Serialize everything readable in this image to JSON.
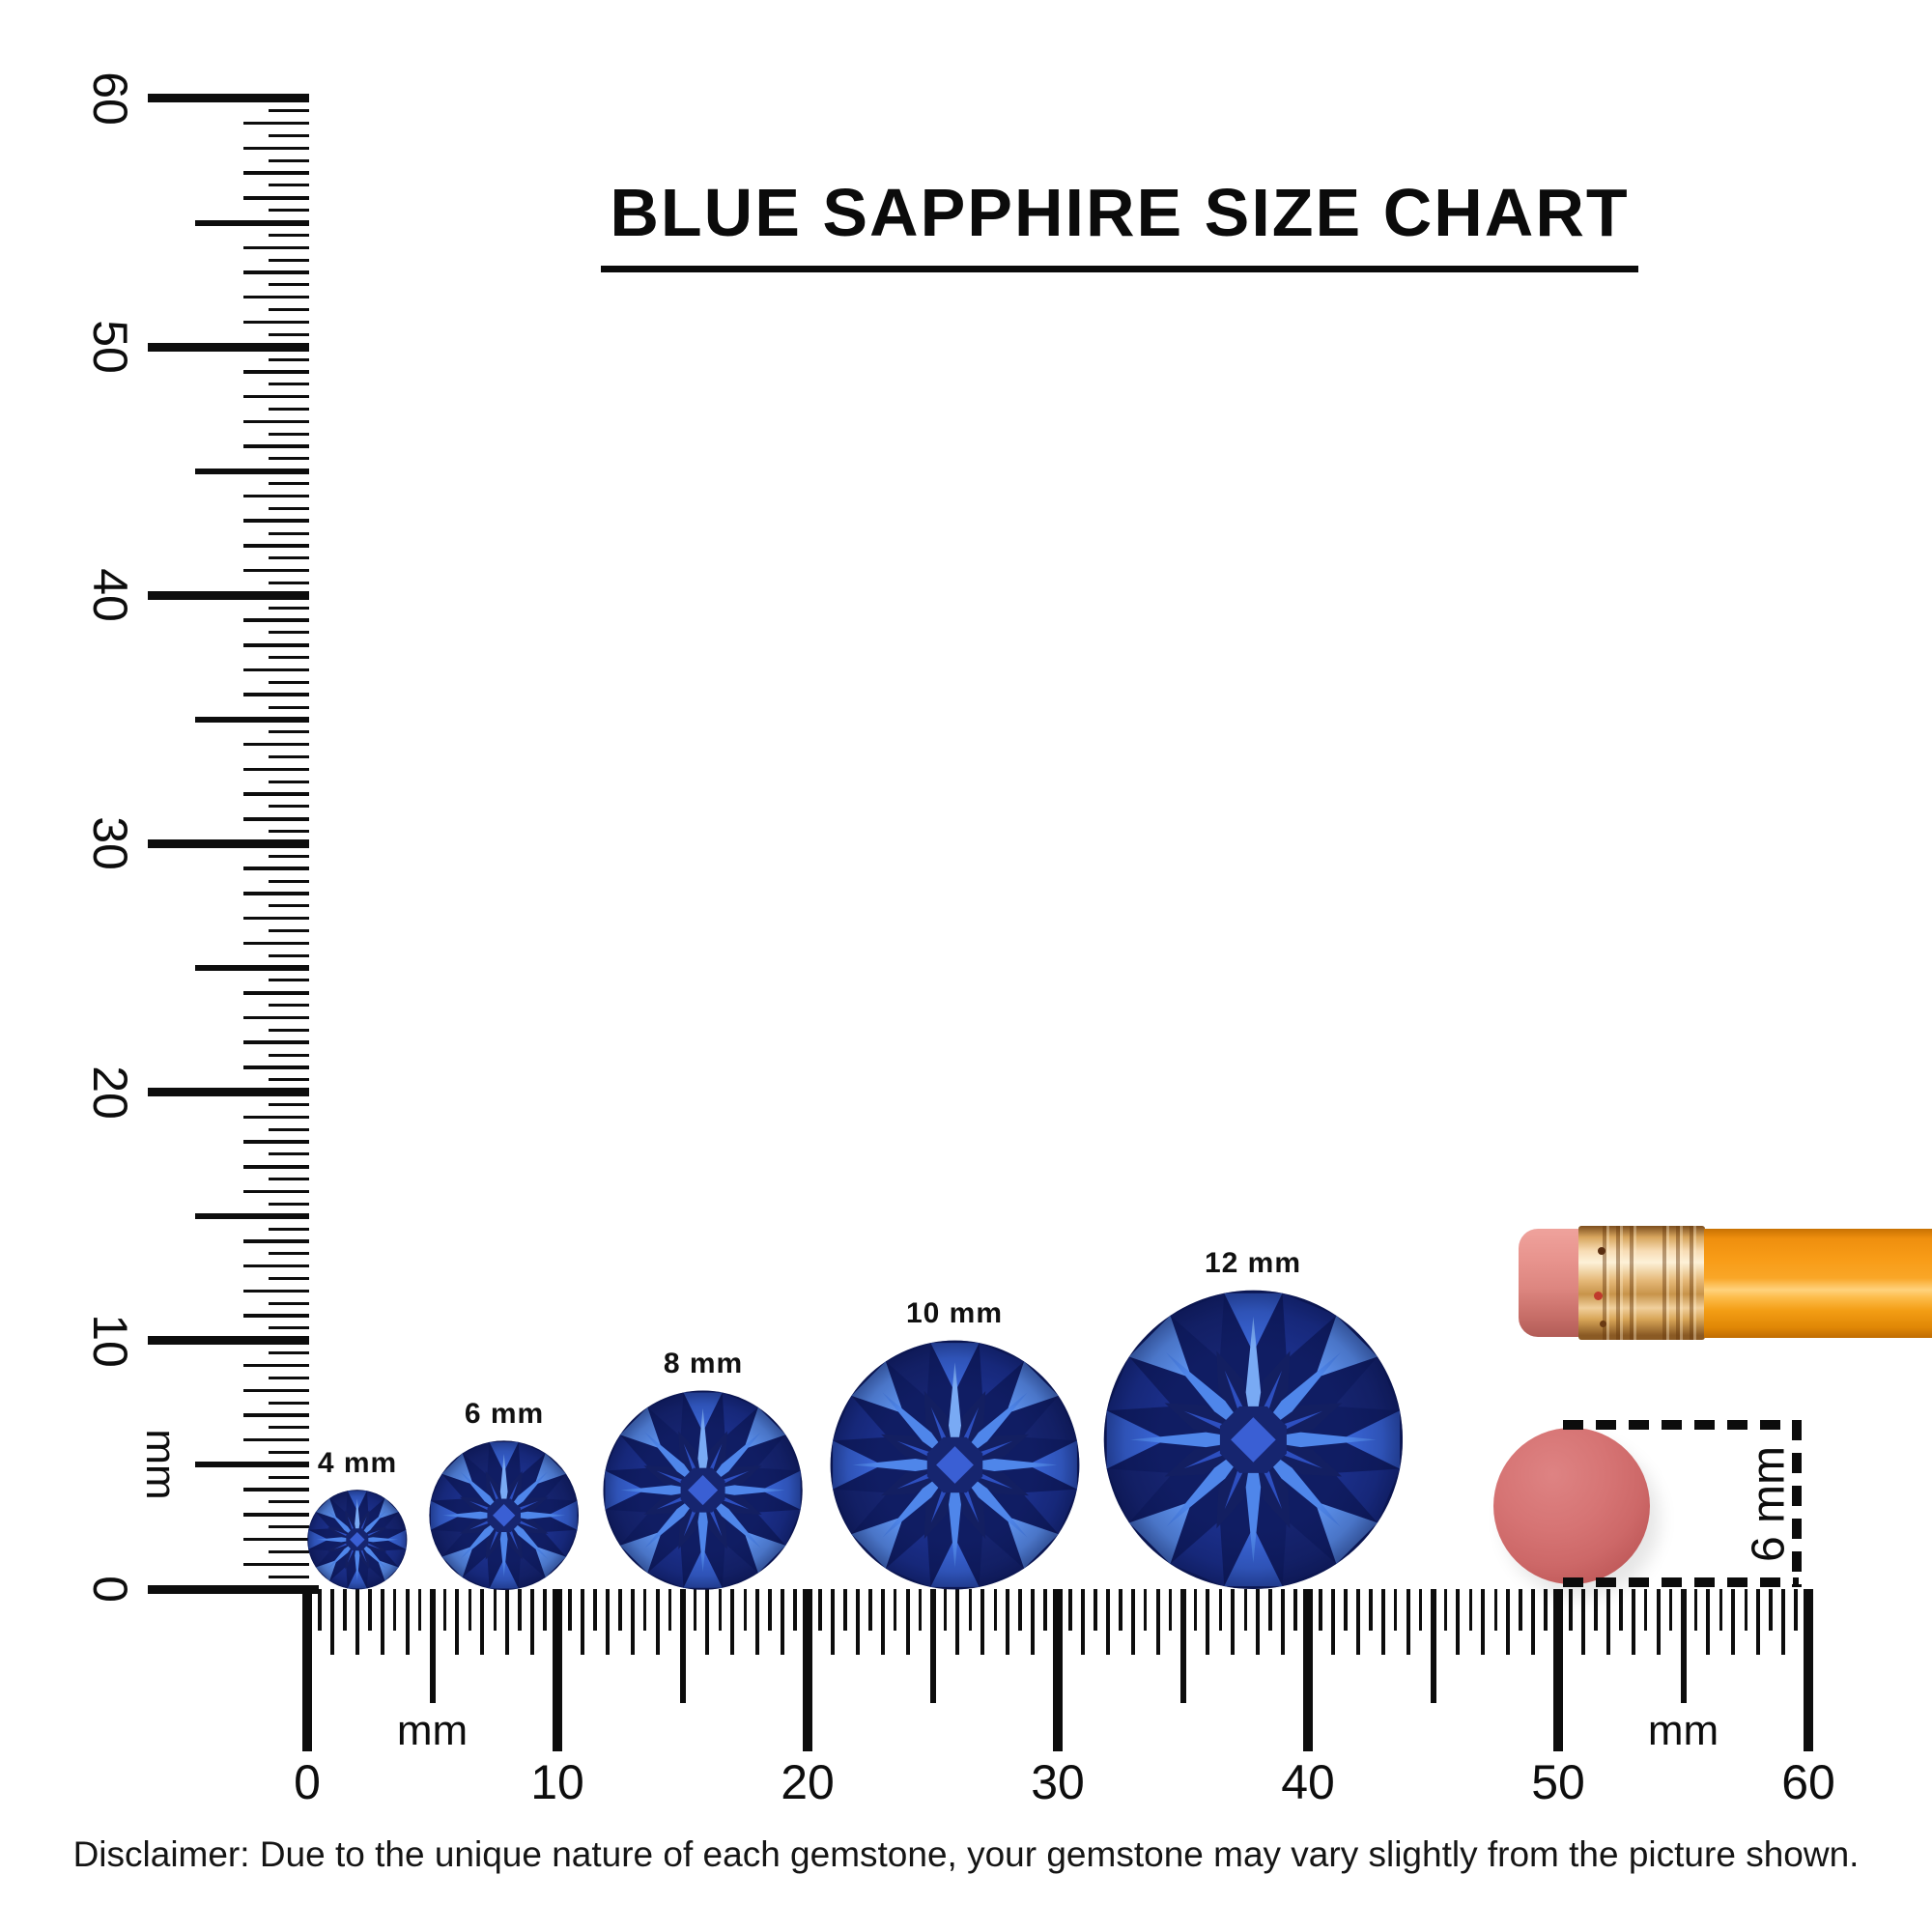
{
  "title": {
    "text": "BLUE SAPPHIRE SIZE CHART"
  },
  "rulers": {
    "vertical": {
      "unit": "mm",
      "tick_labels": [
        "0",
        "10",
        "20",
        "30",
        "40",
        "50",
        "60"
      ],
      "max_mm": 60,
      "minor_step_mm": 0.5
    },
    "horizontal": {
      "unit": "mm",
      "tick_labels": [
        "0",
        "10",
        "20",
        "30",
        "40",
        "50",
        "60"
      ],
      "max_mm": 60,
      "minor_step_mm": 0.5,
      "unit_label_positions_mm": [
        5,
        55
      ]
    }
  },
  "gems": [
    {
      "label": "4 mm",
      "size_mm": 4
    },
    {
      "label": "6 mm",
      "size_mm": 6
    },
    {
      "label": "8 mm",
      "size_mm": 8
    },
    {
      "label": "10 mm",
      "size_mm": 10
    },
    {
      "label": "12 mm",
      "size_mm": 12
    }
  ],
  "gem_palette": {
    "base": "#101d63",
    "rim": [
      "#3a66d8",
      "#16246f",
      "#5d92ee",
      "#1b2f8a"
    ],
    "dark_kite": "#131f61",
    "inner_spike": "#2d4fc0",
    "spike": "#4f86ea",
    "spike_top": "#79aaf4",
    "table": "#16256f",
    "table_diamond": "#3a5fd4",
    "vignette": "#060e3e"
  },
  "reference_objects": {
    "pencil": {
      "body_color": "#f89c17",
      "ferrule_color": "#e5b878",
      "eraser_color": "#e08e88"
    },
    "eraser_disc": {
      "color": "#d06a6a",
      "measurement_label": "6 mm"
    }
  },
  "disclaimer": "Disclaimer: Due to the unique nature of each gemstone, your gemstone may vary slightly from the picture shown."
}
